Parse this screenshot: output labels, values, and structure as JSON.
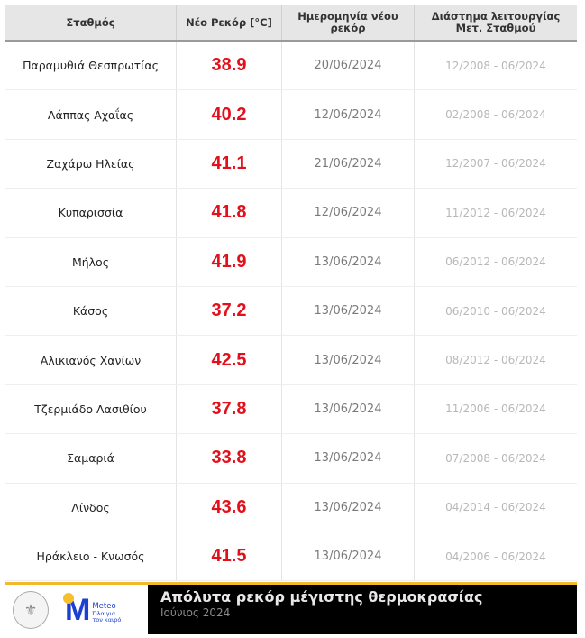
{
  "table": {
    "headers": [
      "Σταθμός",
      "Νέο Ρεκόρ [°C]",
      "Ημερομηνία νέου ρεκόρ",
      "Διάστημα λειτουργίας Μετ. Σταθμού"
    ],
    "rows": [
      {
        "station": "Παραμυθιά Θεσπρωτίας",
        "record": "38.9",
        "date": "20/06/2024",
        "period": "12/2008 - 06/2024"
      },
      {
        "station": "Λάππας Αχαΐας",
        "record": "40.2",
        "date": "12/06/2024",
        "period": "02/2008 - 06/2024"
      },
      {
        "station": "Ζαχάρω Ηλείας",
        "record": "41.1",
        "date": "21/06/2024",
        "period": "12/2007 - 06/2024"
      },
      {
        "station": "Κυπαρισσία",
        "record": "41.8",
        "date": "12/06/2024",
        "period": "11/2012 - 06/2024"
      },
      {
        "station": "Μήλος",
        "record": "41.9",
        "date": "13/06/2024",
        "period": "06/2012 - 06/2024"
      },
      {
        "station": "Κάσος",
        "record": "37.2",
        "date": "13/06/2024",
        "period": "06/2010 - 06/2024"
      },
      {
        "station": "Αλικιανός Χανίων",
        "record": "42.5",
        "date": "13/06/2024",
        "period": "08/2012 - 06/2024"
      },
      {
        "station": "Τζερμιάδο Λασιθίου",
        "record": "37.8",
        "date": "13/06/2024",
        "period": "11/2006 - 06/2024"
      },
      {
        "station": "Σαμαριά",
        "record": "33.8",
        "date": "13/06/2024",
        "period": "07/2008 - 06/2024"
      },
      {
        "station": "Λίνδος",
        "record": "43.6",
        "date": "13/06/2024",
        "period": "04/2014 - 06/2024"
      },
      {
        "station": "Ηράκλειο - Κνωσός",
        "record": "41.5",
        "date": "13/06/2024",
        "period": "04/2006 - 06/2024"
      }
    ]
  },
  "footer": {
    "title": "Απόλυτα ρεκόρ μέγιστης θερμοκρασίας",
    "subtitle": "Ιούνιος 2024",
    "logos": {
      "seal_icon": "observatory-seal-icon",
      "meteo_letter": "M",
      "meteo_brand": "Meteo",
      "meteo_tagline_1": "Όλα για",
      "meteo_tagline_2": "τον καιρό"
    }
  },
  "colors": {
    "record": "#e3101b",
    "header_bg": "#e6e6e6",
    "footer_accent": "#f0b92e",
    "footer_bg": "#000000",
    "meteo_blue": "#1b3fd0"
  }
}
